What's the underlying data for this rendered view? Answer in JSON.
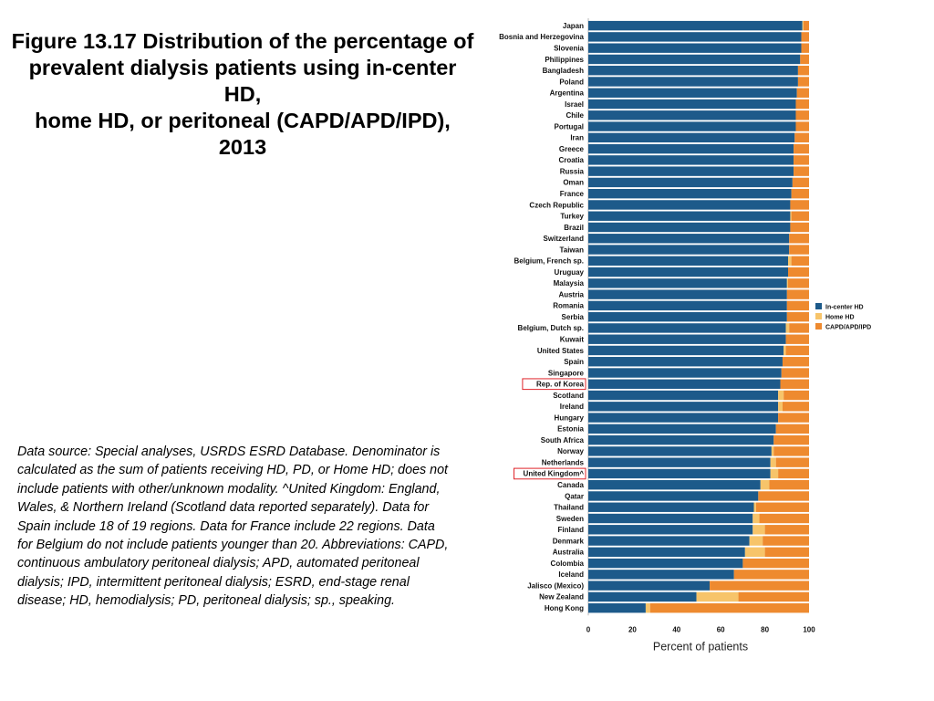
{
  "title_lines": [
    "Figure 13.17 Distribution of the percentage of",
    "prevalent dialysis patients using in-center HD,",
    "home HD, or peritoneal (CAPD/APD/IPD), 2013"
  ],
  "note": "Data source: Special analyses, USRDS ESRD Database. Denominator is calculated as the sum of patients receiving HD, PD, or Home HD; does not include patients with other/unknown modality. ^United Kingdom: England, Wales, & Northern Ireland (Scotland data reported separately). Data for Spain include 18 of 19 regions. Data for France include 22 regions. Data for Belgium do not include patients younger than 20. Abbreviations: CAPD, continuous ambulatory peritoneal dialysis; APD, automated peritoneal dialysis; IPD, intermittent peritoneal dialysis; ESRD, end-stage renal disease; HD, hemodialysis; PD, peritoneal dialysis; sp., speaking.",
  "colors": {
    "in_center": "#1d5a8a",
    "home": "#f7c46a",
    "pd": "#ee8a2f",
    "highlight": "#e0242a",
    "label": "#111111"
  },
  "chart_data": {
    "type": "bar",
    "orientation": "horizontal",
    "stacked": true,
    "xlabel": "Percent of patients",
    "xlim": [
      0,
      100
    ],
    "xticks": [
      "0",
      "20",
      "40",
      "60",
      "80",
      "100"
    ],
    "legend": [
      "In-center HD",
      "Home HD",
      "CAPD/APD/IPD"
    ],
    "highlighted": [
      "Rep. of Korea",
      "United Kingdom^"
    ],
    "categories": [
      "Japan",
      "Bosnia and Herzegovina",
      "Slovenia",
      "Philippines",
      "Bangladesh",
      "Poland",
      "Argentina",
      "Israel",
      "Chile",
      "Portugal",
      "Iran",
      "Greece",
      "Croatia",
      "Russia",
      "Oman",
      "France",
      "Czech Republic",
      "Turkey",
      "Brazil",
      "Switzerland",
      "Taiwan",
      "Belgium, French sp.",
      "Uruguay",
      "Malaysia",
      "Austria",
      "Romania",
      "Serbia",
      "Belgium, Dutch sp.",
      "Kuwait",
      "United States",
      "Spain",
      "Singapore",
      "Rep. of Korea",
      "Scotland",
      "Ireland",
      "Hungary",
      "Estonia",
      "South Africa",
      "Norway",
      "Netherlands",
      "United Kingdom^",
      "Canada",
      "Qatar",
      "Thailand",
      "Sweden",
      "Finland",
      "Denmark",
      "Australia",
      "Colombia",
      "Iceland",
      "Jalisco (Mexico)",
      "New Zealand",
      "Hong Kong"
    ],
    "series": [
      {
        "name": "In-center HD",
        "values": [
          97,
          96.5,
          96.5,
          96,
          95,
          95,
          94.5,
          94,
          94,
          94,
          93.5,
          93,
          93,
          93,
          92.5,
          92,
          91.5,
          91.5,
          91.5,
          91,
          91,
          90.5,
          90.5,
          90,
          90,
          90,
          90,
          89.5,
          89.5,
          88.5,
          88,
          87.5,
          87,
          86,
          86,
          86,
          85,
          84,
          83,
          82.5,
          82.5,
          78,
          77,
          75,
          74.5,
          74.5,
          73,
          71,
          70,
          66,
          55,
          49,
          26
        ]
      },
      {
        "name": "Home HD",
        "values": [
          0.5,
          0,
          0,
          0,
          0,
          0,
          0,
          0,
          0,
          0,
          0,
          0,
          0,
          0,
          0,
          0,
          0,
          0.5,
          0,
          0,
          0,
          1.5,
          0,
          0.5,
          0,
          0,
          0,
          1.5,
          0,
          1,
          0,
          0,
          0,
          2.5,
          2,
          0,
          0,
          0,
          1,
          2.5,
          3.5,
          4,
          0,
          1,
          3,
          5.5,
          6,
          9,
          0,
          0,
          0,
          19,
          2
        ]
      },
      {
        "name": "CAPD/APD/IPD",
        "values": [
          2.5,
          3.5,
          3.5,
          4,
          5,
          5,
          5.5,
          6,
          6,
          6,
          6.5,
          7,
          7,
          7,
          7.5,
          8,
          8.5,
          8,
          8.5,
          9,
          9,
          8,
          9.5,
          9.5,
          10,
          10,
          10,
          9,
          10.5,
          10.5,
          12,
          12.5,
          13,
          11.5,
          12,
          14,
          15,
          16,
          16,
          15,
          14,
          18,
          23,
          24,
          22.5,
          20,
          21,
          20,
          30,
          34,
          45,
          32,
          72
        ]
      }
    ]
  }
}
